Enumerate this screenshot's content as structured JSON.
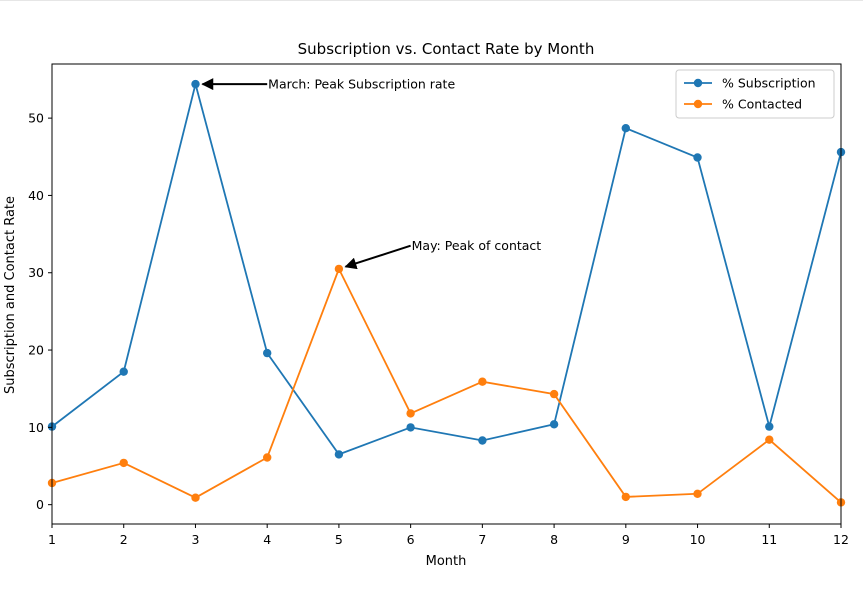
{
  "chart_data": {
    "type": "line",
    "title": "Subscription vs. Contact Rate by Month",
    "xlabel": "Month",
    "ylabel": "Subscription and Contact Rate",
    "x": [
      1,
      2,
      3,
      4,
      5,
      6,
      7,
      8,
      9,
      10,
      11,
      12
    ],
    "xlim": [
      1,
      12
    ],
    "ylim": [
      -2.5,
      57
    ],
    "xticks": [
      "1",
      "2",
      "3",
      "4",
      "5",
      "6",
      "7",
      "8",
      "9",
      "10",
      "11",
      "12"
    ],
    "yticks": [
      "0",
      "10",
      "20",
      "30",
      "40",
      "50"
    ],
    "grid": false,
    "legend": "top-right",
    "series": [
      {
        "name": "% Subscription",
        "color": "#1f77b4",
        "values": [
          10.1,
          17.2,
          54.4,
          19.6,
          6.5,
          10.0,
          8.3,
          10.4,
          48.7,
          44.9,
          10.1,
          45.6
        ]
      },
      {
        "name": "% Contacted",
        "color": "#ff7f0e",
        "values": [
          2.8,
          5.4,
          0.9,
          6.1,
          30.5,
          11.8,
          15.9,
          14.3,
          1.0,
          1.4,
          8.4,
          0.3
        ]
      }
    ],
    "annotations": [
      {
        "text": "March: Peak Subscription rate",
        "x": 3,
        "y": 54.4,
        "text_x": 4,
        "text_y": 54.4
      },
      {
        "text": "May: Peak of contact",
        "x": 5,
        "y": 30.5,
        "text_x": 6,
        "text_y": 33.5
      }
    ]
  }
}
